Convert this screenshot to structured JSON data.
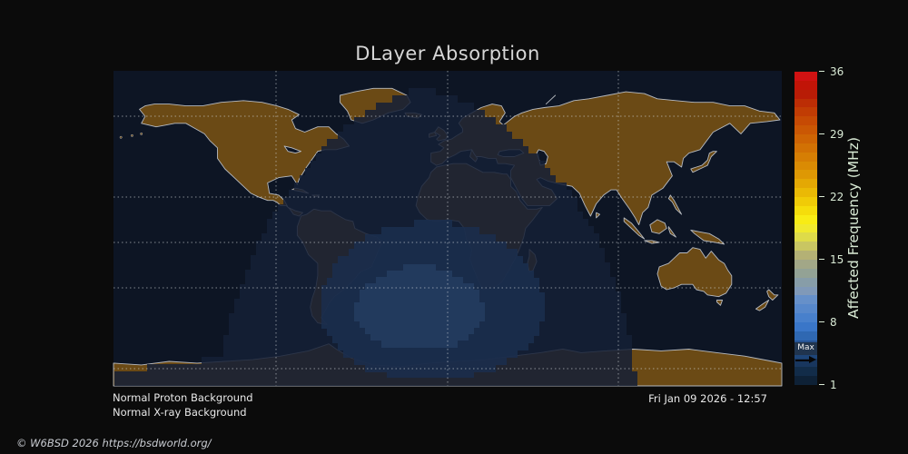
{
  "title": "DLayer Absorption",
  "annotations": {
    "proton_status": "Normal Proton Background",
    "xray_status": "Normal X-ray Background",
    "timestamp": "Fri Jan 09 2026 - 12:57",
    "copyright": "© W6BSD 2026 https://bsdworld.org/"
  },
  "colorbar": {
    "label": "Affected Frequency (MHz)",
    "min": 1,
    "max": 36,
    "ticks": [
      36,
      29,
      22,
      15,
      8,
      1
    ],
    "max_marker_label": "Max",
    "max_marker_value": 4,
    "segment_colors": [
      "#cf1212",
      "#c11407",
      "#b81c06",
      "#bc2d05",
      "#c13c04",
      "#c64a04",
      "#ca5704",
      "#ce6404",
      "#d27104",
      "#d67e04",
      "#da8b04",
      "#de9804",
      "#e4a804",
      "#eab905",
      "#f0cb07",
      "#f5dd0b",
      "#f8ec15",
      "#f0e92e",
      "#dedb49",
      "#c9c662",
      "#b4b175",
      "#a2a787",
      "#93a295",
      "#879da8",
      "#8099b8",
      "#6690c9",
      "#5788cb",
      "#4880cc",
      "#3a76c8",
      "#2f68b2",
      "#265495",
      "#1e4578",
      "#18365e",
      "#122c49",
      "#0e2136"
    ]
  },
  "map": {
    "ocean_color": "#0d1524",
    "land_color": "#6b4a15",
    "coast_color": "#b6bac0",
    "grid_color": "#d2d6da",
    "absorption_bands": [
      {
        "level": "outer",
        "color": "rgba(21,32,54,0.86)"
      },
      {
        "level": "middle",
        "color": "rgba(27,45,76,0.90)"
      },
      {
        "level": "inner",
        "color": "rgba(35,60,94,0.92)"
      }
    ]
  }
}
